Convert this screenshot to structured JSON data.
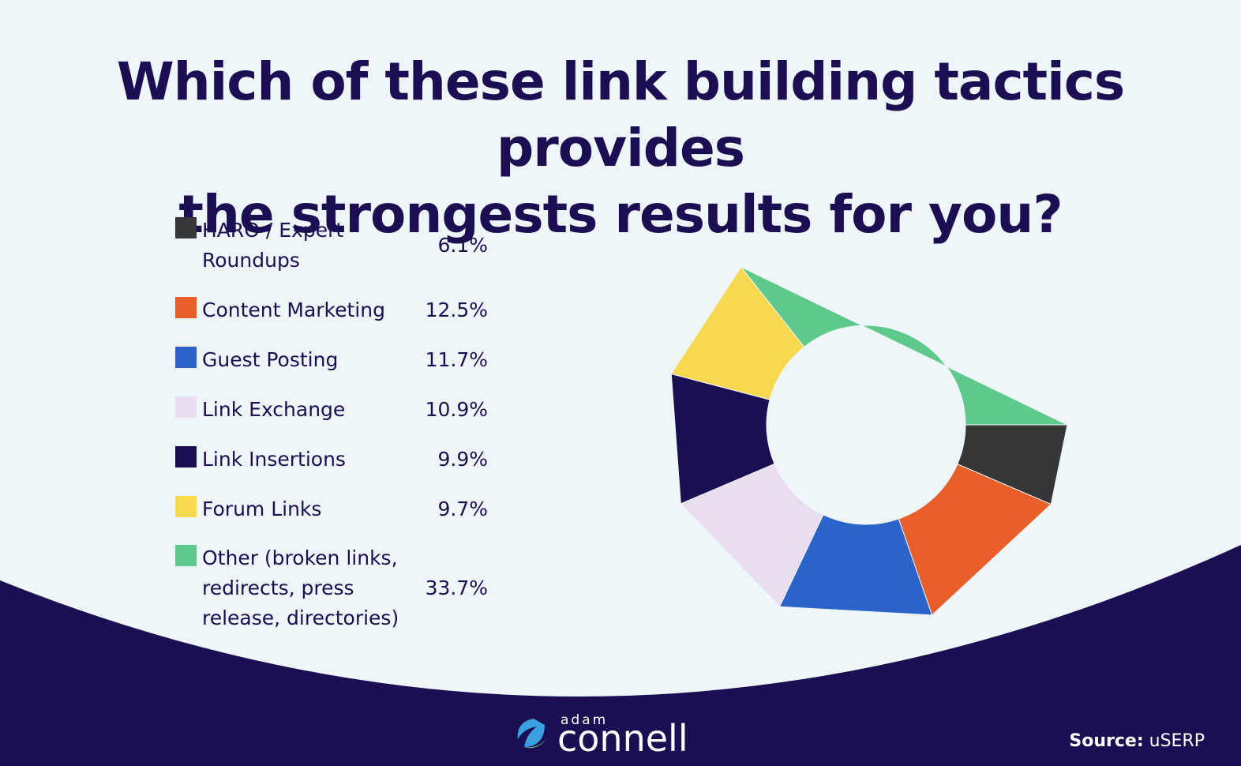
{
  "colors": {
    "background": "#eef6fa",
    "navy": "#1b0e52",
    "green": "#5dc98b",
    "black": "#353638",
    "orange": "#e95f2a",
    "blue": "#2a63c9",
    "lavender": "#e9def0",
    "yellow": "#f7d84e"
  },
  "title": {
    "line1": "Which of these link building tactics provides",
    "line2": "the strongests results for you?"
  },
  "chart_data": {
    "type": "pie",
    "donut": true,
    "title": "Which of these link building tactics provides the strongests results for you?",
    "categories": [
      "HARO / Expert Roundups",
      "Content Marketing",
      "Guest Posting",
      "Link Exchange",
      "Link Insertions",
      "Forum Links",
      "Other (broken links, redirects, press release, directories)"
    ],
    "values": [
      6.1,
      12.5,
      11.7,
      10.9,
      9.9,
      9.7,
      33.7
    ],
    "value_labels": [
      "6.1%",
      "12.5%",
      "11.7%",
      "10.9%",
      "9.9%",
      "9.7%",
      "33.7%"
    ],
    "colors": [
      "#353638",
      "#e95f2a",
      "#2a63c9",
      "#e9def0",
      "#1b0e52",
      "#f7d84e",
      "#5dc98b"
    ],
    "legend_position": "left"
  },
  "legend": [
    {
      "lines": [
        "HARO / Expert",
        "Roundups"
      ],
      "value": "6.1%"
    },
    {
      "lines": [
        "Content Marketing"
      ],
      "value": "12.5%"
    },
    {
      "lines": [
        "Guest Posting"
      ],
      "value": "11.7%"
    },
    {
      "lines": [
        "Link Exchange"
      ],
      "value": "10.9%"
    },
    {
      "lines": [
        "Link Insertions"
      ],
      "value": "9.9%"
    },
    {
      "lines": [
        "Forum Links"
      ],
      "value": "9.7%"
    },
    {
      "lines": [
        "Other (broken links,",
        "redirects, press",
        "release, directories)"
      ],
      "value": "33.7%"
    }
  ],
  "logo": {
    "small": "adam",
    "big": "connell"
  },
  "source": {
    "label": "Source:",
    "value": "uSERP"
  }
}
